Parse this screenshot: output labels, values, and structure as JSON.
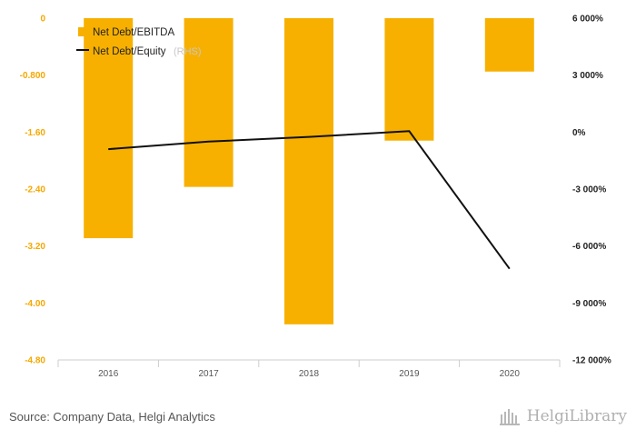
{
  "chart_data": {
    "type": "bar",
    "categories": [
      "2016",
      "2017",
      "2018",
      "2019",
      "2020"
    ],
    "series": [
      {
        "name": "Net Debt/EBITDA",
        "type": "bar",
        "axis": "left",
        "values": [
          -3.09,
          -2.37,
          -4.3,
          -1.72,
          -0.75
        ]
      },
      {
        "name": "Net Debt/Equity",
        "unit": "(RHS)",
        "type": "line",
        "axis": "right",
        "values": [
          -900,
          -500,
          -250,
          50,
          -7200
        ]
      }
    ],
    "left_axis": {
      "ticks": [
        "0",
        "-0.800",
        "-1.60",
        "-2.40",
        "-3.20",
        "-4.00",
        "-4.80"
      ],
      "ylim": [
        -4.8,
        0
      ]
    },
    "right_axis": {
      "ticks": [
        "6 000%",
        "3 000%",
        "0%",
        "-3 000%",
        "-6 000%",
        "-9 000%",
        "-12 000%"
      ],
      "ylim": [
        -12000,
        6000
      ]
    },
    "legend_position": "top-left",
    "grid": false,
    "colors": {
      "bar": "#f7b000",
      "line": "#111111",
      "left_ticks": "#f5a800"
    }
  },
  "footer": {
    "source": "Source: Company Data, Helgi Analytics",
    "brand": "HelgiLibrary"
  }
}
